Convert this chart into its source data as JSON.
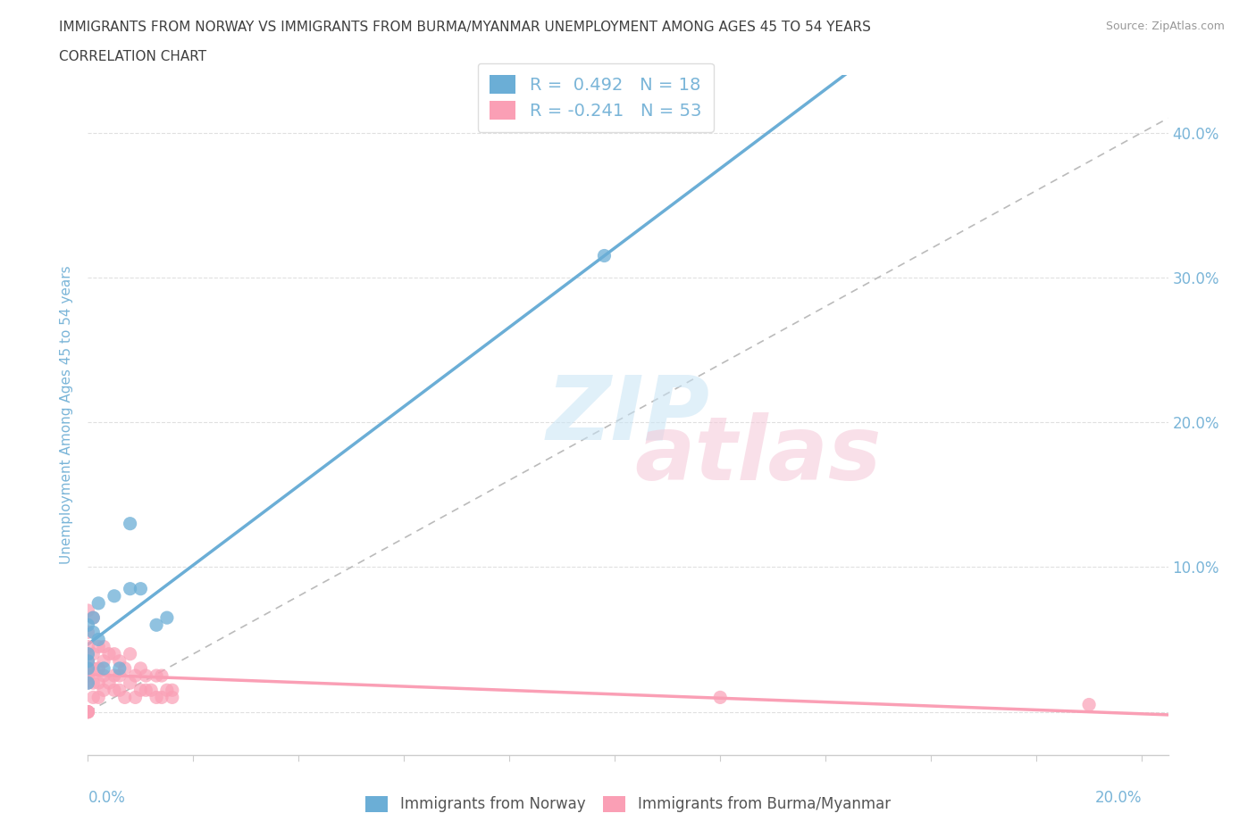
{
  "title_line1": "IMMIGRANTS FROM NORWAY VS IMMIGRANTS FROM BURMA/MYANMAR UNEMPLOYMENT AMONG AGES 45 TO 54 YEARS",
  "title_line2": "CORRELATION CHART",
  "source": "Source: ZipAtlas.com",
  "xlabel_max": "20.0%",
  "xlabel_min": "0.0%",
  "ylabel": "Unemployment Among Ages 45 to 54 years",
  "norway_color": "#6baed6",
  "burma_color": "#fa9fb5",
  "norway_R": 0.492,
  "norway_N": 18,
  "burma_R": -0.241,
  "burma_N": 53,
  "norway_scatter_x": [
    0.0,
    0.0,
    0.0,
    0.0,
    0.0,
    0.001,
    0.001,
    0.002,
    0.002,
    0.003,
    0.005,
    0.006,
    0.008,
    0.008,
    0.01,
    0.013,
    0.015,
    0.098
  ],
  "norway_scatter_y": [
    0.02,
    0.03,
    0.035,
    0.04,
    0.06,
    0.055,
    0.065,
    0.05,
    0.075,
    0.03,
    0.08,
    0.03,
    0.085,
    0.13,
    0.085,
    0.06,
    0.065,
    0.315
  ],
  "burma_scatter_x": [
    0.0,
    0.0,
    0.0,
    0.0,
    0.0,
    0.0,
    0.0,
    0.0,
    0.0,
    0.0,
    0.0,
    0.0,
    0.001,
    0.001,
    0.001,
    0.001,
    0.001,
    0.002,
    0.002,
    0.002,
    0.002,
    0.003,
    0.003,
    0.003,
    0.003,
    0.004,
    0.004,
    0.005,
    0.005,
    0.005,
    0.006,
    0.006,
    0.006,
    0.007,
    0.007,
    0.008,
    0.008,
    0.009,
    0.009,
    0.01,
    0.01,
    0.011,
    0.011,
    0.012,
    0.013,
    0.013,
    0.014,
    0.014,
    0.015,
    0.016,
    0.016,
    0.12,
    0.19
  ],
  "burma_scatter_y": [
    0.0,
    0.0,
    0.0,
    0.0,
    0.02,
    0.025,
    0.03,
    0.035,
    0.04,
    0.045,
    0.055,
    0.07,
    0.01,
    0.02,
    0.03,
    0.04,
    0.065,
    0.01,
    0.02,
    0.03,
    0.045,
    0.015,
    0.025,
    0.035,
    0.045,
    0.02,
    0.04,
    0.015,
    0.025,
    0.04,
    0.015,
    0.025,
    0.035,
    0.01,
    0.03,
    0.02,
    0.04,
    0.01,
    0.025,
    0.015,
    0.03,
    0.015,
    0.025,
    0.015,
    0.01,
    0.025,
    0.01,
    0.025,
    0.015,
    0.01,
    0.015,
    0.01,
    0.005
  ],
  "xlim": [
    0.0,
    0.205
  ],
  "ylim": [
    -0.03,
    0.44
  ],
  "yticks_right": [
    0.1,
    0.2,
    0.3,
    0.4
  ],
  "ytick_labels_right": [
    "10.0%",
    "20.0%",
    "30.0%",
    "40.0%"
  ],
  "background_color": "#ffffff",
  "grid_color": "#e0e0e0",
  "tick_color": "#7ab5d8",
  "title_color": "#404040",
  "axis_color": "#cccccc"
}
